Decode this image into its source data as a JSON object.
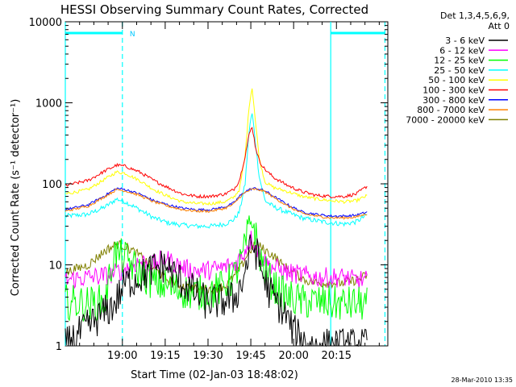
{
  "chart_data": {
    "type": "line",
    "title": "HESSI Observing Summary Count Rates, Corrected",
    "xlabel": "Start Time (02-Jan-03 18:48:02)",
    "ylabel": "Corrected Count Rate (s⁻¹ detector⁻¹)",
    "yscale": "log",
    "ylim": [
      1,
      10000
    ],
    "xlim": [
      -8,
      105
    ],
    "x_unit": "minutes after 18:48",
    "y_ticks": [
      {
        "value": 1,
        "label": "1"
      },
      {
        "value": 10,
        "label": "10"
      },
      {
        "value": 100,
        "label": "100"
      },
      {
        "value": 1000,
        "label": "1000"
      },
      {
        "value": 10000,
        "label": "10000"
      }
    ],
    "x_ticks": [
      {
        "value": 12,
        "label": "19:00"
      },
      {
        "value": 27,
        "label": "19:15"
      },
      {
        "value": 42,
        "label": "19:30"
      },
      {
        "value": 57,
        "label": "19:45"
      },
      {
        "value": 72,
        "label": "20:00"
      },
      {
        "value": 87,
        "label": "20:15"
      }
    ],
    "legend_header": [
      "Det 1,3,4,5,6,9,",
      "Att 0"
    ],
    "legend_position": "right",
    "series": [
      {
        "name": "3 - 6 keV",
        "color": "#000000",
        "x": [
          -8,
          9,
          13,
          18,
          23,
          27,
          31,
          36,
          41,
          46,
          51,
          54,
          56,
          57.5,
          59,
          61,
          63,
          66,
          69,
          72,
          75,
          78,
          82,
          86,
          90,
          93,
          96,
          98
        ],
        "y": [
          1,
          3.2,
          6,
          7,
          9,
          10,
          7,
          5,
          3.5,
          3.5,
          3.8,
          6,
          12,
          18,
          14,
          8,
          5,
          3.5,
          2.5,
          1.5,
          1.2,
          1,
          1,
          1,
          1,
          1,
          1,
          1
        ]
      },
      {
        "name": "6 - 12 keV",
        "color": "#ff00ff",
        "x": [
          -8,
          0,
          8,
          13,
          18,
          23,
          27,
          31,
          36,
          41,
          46,
          51,
          54,
          56,
          57.5,
          59,
          61,
          63,
          66,
          70,
          75,
          80,
          86,
          90,
          93,
          96,
          98
        ],
        "y": [
          6.5,
          7,
          7.5,
          9,
          11,
          10,
          12,
          10,
          8.5,
          8.5,
          9,
          10,
          13,
          18,
          22,
          16,
          12,
          10,
          9,
          8,
          7.5,
          7,
          7,
          7,
          6.5,
          6.5,
          6.5
        ]
      },
      {
        "name": "12 - 25 keV",
        "color": "#00ff00",
        "x": [
          -8,
          0,
          6,
          9,
          13,
          18,
          23,
          27,
          31,
          36,
          41,
          46,
          51,
          54,
          56,
          57.5,
          59,
          61,
          63,
          66,
          70,
          75,
          80,
          86,
          90,
          93,
          96,
          98
        ],
        "y": [
          3.5,
          3.3,
          3.5,
          14,
          12,
          8,
          6,
          5.5,
          5,
          4.5,
          4.5,
          5,
          7,
          12,
          25,
          38,
          20,
          10,
          7,
          5,
          4,
          3.5,
          3.5,
          3.3,
          3.3,
          3.3,
          3.3,
          3.3
        ]
      },
      {
        "name": "25 - 50 keV",
        "color": "#00ffff",
        "x": [
          -8,
          0,
          6,
          10,
          13,
          18,
          23,
          28,
          33,
          38,
          43,
          48,
          51,
          53,
          55,
          56.5,
          57.5,
          58.5,
          60,
          62,
          65,
          70,
          75,
          80,
          85,
          90,
          94,
          98
        ],
        "y": [
          40,
          42,
          52,
          65,
          60,
          48,
          38,
          33,
          31,
          30,
          30,
          32,
          36,
          45,
          100,
          500,
          750,
          350,
          120,
          62,
          52,
          44,
          38,
          35,
          33,
          32,
          34,
          42
        ]
      },
      {
        "name": "50 - 100 keV",
        "color": "#ffff00",
        "x": [
          -8,
          0,
          6,
          10,
          13,
          18,
          23,
          28,
          33,
          38,
          43,
          48,
          51,
          53,
          55,
          56.5,
          57.5,
          58.5,
          60,
          62,
          65,
          70,
          75,
          80,
          85,
          90,
          94,
          98
        ],
        "y": [
          75,
          85,
          115,
          140,
          135,
          110,
          85,
          70,
          60,
          57,
          57,
          60,
          68,
          85,
          220,
          1000,
          1550,
          650,
          200,
          105,
          90,
          80,
          70,
          65,
          62,
          60,
          62,
          72
        ]
      },
      {
        "name": "100 - 300 keV",
        "color": "#ff0000",
        "x": [
          -8,
          0,
          6,
          10,
          13,
          18,
          23,
          28,
          33,
          38,
          43,
          48,
          51,
          53,
          55,
          56.5,
          57.5,
          58.5,
          60,
          62,
          65,
          70,
          75,
          80,
          85,
          90,
          94,
          98
        ],
        "y": [
          95,
          110,
          145,
          170,
          165,
          140,
          110,
          90,
          75,
          70,
          70,
          75,
          85,
          110,
          220,
          420,
          510,
          300,
          190,
          150,
          120,
          95,
          80,
          72,
          70,
          70,
          75,
          95
        ]
      },
      {
        "name": "300 - 800 keV",
        "color": "#0000ff",
        "x": [
          -8,
          0,
          6,
          10,
          13,
          18,
          23,
          28,
          33,
          38,
          43,
          48,
          51,
          53,
          55,
          56.5,
          58,
          60,
          62,
          65,
          70,
          75,
          80,
          85,
          90,
          94,
          98
        ],
        "y": [
          48,
          55,
          72,
          88,
          85,
          75,
          62,
          55,
          50,
          48,
          48,
          52,
          58,
          70,
          80,
          85,
          88,
          86,
          82,
          70,
          55,
          45,
          42,
          40,
          40,
          41,
          45
        ]
      },
      {
        "name": "800 - 7000 keV",
        "color": "#ff8000",
        "x": [
          -8,
          0,
          6,
          10,
          13,
          18,
          23,
          28,
          33,
          38,
          43,
          48,
          51,
          53,
          55,
          56.5,
          58,
          60,
          62,
          65,
          70,
          75,
          80,
          85,
          90,
          94,
          98
        ],
        "y": [
          46,
          53,
          70,
          85,
          82,
          72,
          60,
          53,
          48,
          46,
          46,
          50,
          56,
          68,
          78,
          83,
          86,
          84,
          80,
          68,
          53,
          43,
          40,
          38,
          38,
          39,
          43
        ]
      },
      {
        "name": "7000 - 20000 keV",
        "color": "#808000",
        "x": [
          -8,
          0,
          6,
          10,
          13,
          18,
          23,
          28,
          33,
          38,
          43,
          48,
          51,
          54,
          56,
          58,
          60,
          62,
          65,
          68,
          72,
          76,
          80,
          85,
          90,
          94,
          98
        ],
        "y": [
          8,
          10,
          15,
          18,
          17,
          13,
          9,
          6.5,
          5.5,
          5,
          5,
          5.5,
          7,
          10,
          14,
          17,
          17,
          15,
          13,
          10,
          8,
          6.5,
          6,
          6,
          6,
          6.5,
          7.5
        ]
      }
    ],
    "annotations": [
      {
        "text": "N",
        "x": 14
      }
    ],
    "intervals": [
      {
        "type": "night",
        "from": -8,
        "to": 12
      },
      {
        "type": "night",
        "from": 85,
        "to": 104
      }
    ],
    "markers_dashed_x": [
      12,
      104
    ],
    "markers_solid_x": [
      -8,
      85
    ],
    "footer_date": "28-Mar-2010 13:35"
  }
}
